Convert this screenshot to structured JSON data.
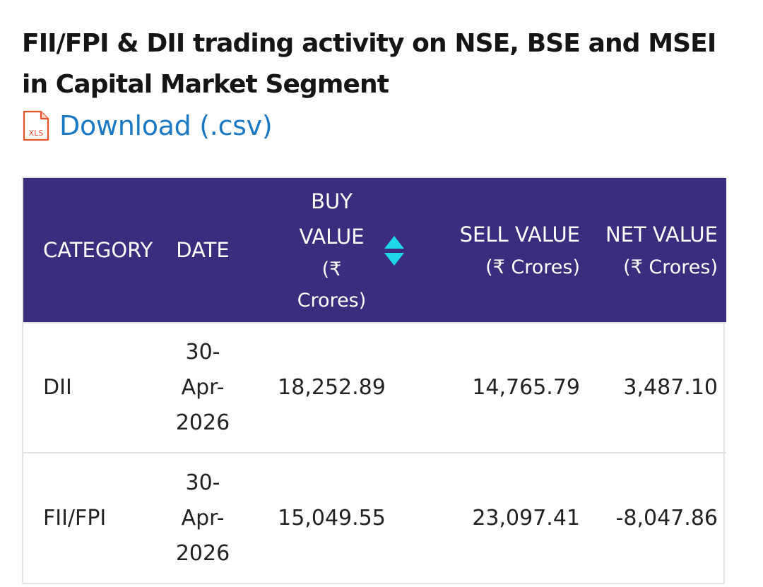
{
  "title": "FII/FPI & DII trading activity on NSE, BSE and MSEI in Capital Market Segment",
  "download": {
    "icon": "xls-file-icon",
    "icon_text": "XLS",
    "label": "Download (.csv)"
  },
  "colors": {
    "header_bg": "#3b2c7e",
    "link": "#1b78c2",
    "sort_arrows": "#1ed8ea",
    "xls_icon": "#e8532e"
  },
  "table": {
    "headers": {
      "category": "CATEGORY",
      "date": "DATE",
      "buy_value": "BUY VALUE",
      "buy_unit": "(₹ Crores)",
      "sell_value": "SELL VALUE",
      "sell_unit": "(₹ Crores)",
      "net_value": "NET VALUE",
      "net_unit": "(₹ Crores)"
    },
    "rows": [
      {
        "category": "DII",
        "date_parts": [
          "30-",
          "Apr-",
          "2026"
        ],
        "buy": "18,252.89",
        "sell": "14,765.79",
        "net": "3,487.10"
      },
      {
        "category": "FII/FPI",
        "date_parts": [
          "30-",
          "Apr-",
          "2026"
        ],
        "buy": "15,049.55",
        "sell": "23,097.41",
        "net": "-8,047.86"
      }
    ]
  }
}
